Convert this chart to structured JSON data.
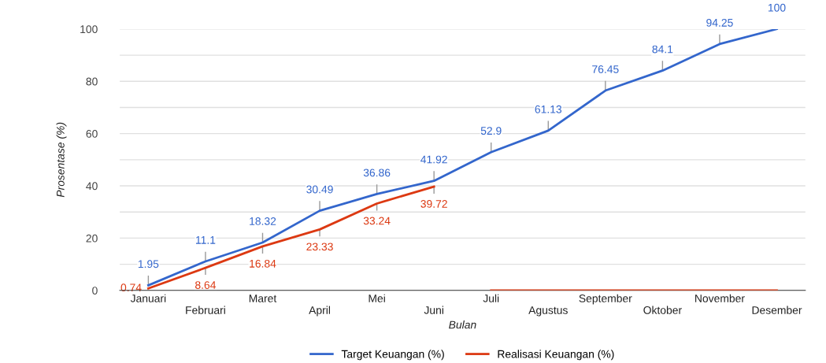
{
  "chart_data": {
    "type": "line",
    "xlabel": "Bulan",
    "ylabel": "Prosentase (%)",
    "categories": [
      "Januari",
      "Februari",
      "Maret",
      "April",
      "Mei",
      "Juni",
      "Juli",
      "Agustus",
      "September",
      "Oktober",
      "November",
      "Desember"
    ],
    "series": [
      {
        "name": "Target Keuangan (%)",
        "color": "#3366cc",
        "values": [
          1.95,
          11.1,
          18.32,
          30.49,
          36.86,
          41.92,
          52.9,
          61.13,
          76.45,
          84.1,
          94.25,
          100
        ],
        "value_labels": [
          "1.95",
          "11.1",
          "18.32",
          "30.49",
          "36.86",
          "41.92",
          "52.9",
          "61.13",
          "76.45",
          "84.1",
          "94.25",
          "100"
        ]
      },
      {
        "name": "Realisasi Keuangan (%)",
        "color": "#dc3912",
        "values": [
          0.74,
          8.64,
          16.84,
          23.33,
          33.24,
          39.72,
          null,
          null,
          null,
          null,
          null,
          null
        ],
        "value_labels": [
          "0.74",
          "8.64",
          "16.84",
          "23.33",
          "33.24",
          "39.72",
          null,
          null,
          null,
          null,
          null,
          null
        ]
      },
      {
        "color": "#dc3912",
        "values": [
          null,
          null,
          null,
          null,
          null,
          null,
          0,
          0,
          0,
          0,
          0,
          0
        ]
      }
    ],
    "ylim": [
      0,
      100
    ],
    "yticks": [
      0,
      {
        "value": 10,
        "label": null
      },
      20,
      {
        "value": 30,
        "label": null
      },
      40,
      {
        "value": 50,
        "label": null
      },
      60,
      {
        "value": 70,
        "label": null
      },
      80,
      {
        "value": 90,
        "label": null
      },
      100
    ],
    "grid": "y",
    "legend": "bottom"
  }
}
